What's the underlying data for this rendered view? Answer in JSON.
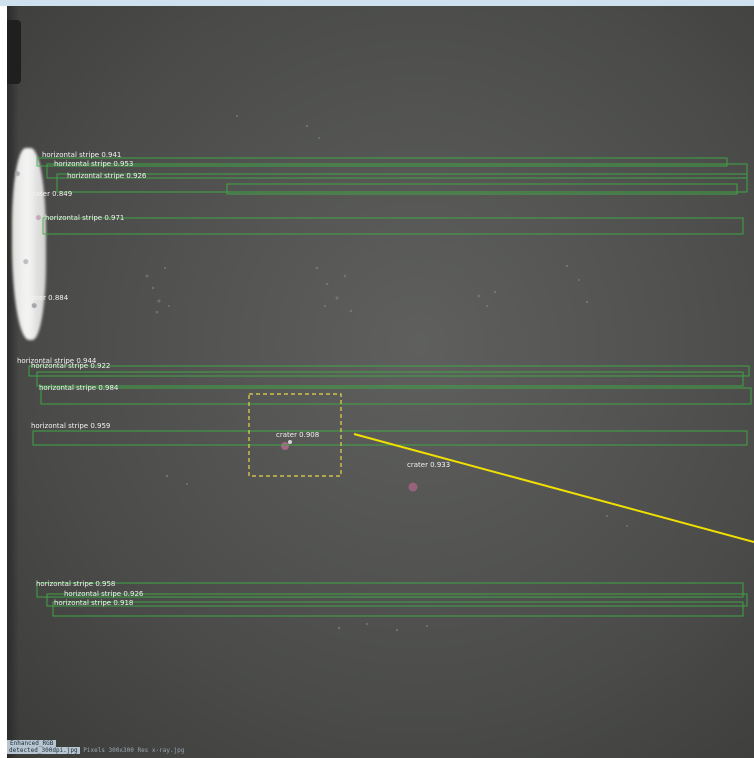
{
  "image": {
    "description_colors": {
      "background": "#4f504e",
      "detection_box": "#3fae45",
      "label_text": "#f2f2f2",
      "callout": "#f0e000",
      "highlight_box": "#e8d44a",
      "crater_mark": "#b06a8c",
      "scar": "#f4f4f2"
    }
  },
  "detections": [
    {
      "label": "horizontal stripe 0.941"
    },
    {
      "label": "horizontal stripe 0.953"
    },
    {
      "label": "horizontal stripe 0.926"
    },
    {
      "label": "crater 0.849"
    },
    {
      "label": "horizontal stripe 0.971"
    },
    {
      "label": "crater 0.884"
    },
    {
      "label": "horizontal stripe 0.944"
    },
    {
      "label": "horizontal stripe 0.922"
    },
    {
      "label": "horizontal stripe 0.984"
    },
    {
      "label": "horizontal stripe 0.959"
    },
    {
      "label": "crater 0.908"
    },
    {
      "label": "crater 0.933"
    },
    {
      "label": "horizontal stripe 0.958"
    },
    {
      "label": "horizontal stripe 0.926"
    },
    {
      "label": "horizontal stripe 0.918"
    }
  ],
  "footer": {
    "line1": "Enhanced_RGB",
    "line2_highlight": "detected_300dpi.jpg",
    "line2_rest": "Pixels  300x300 Res  x-ray.jpg"
  }
}
